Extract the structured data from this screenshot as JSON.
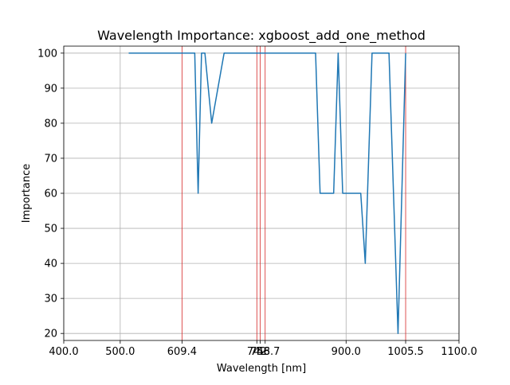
{
  "chart_data": {
    "type": "line",
    "title": "Wavelength Importance: xgboost_add_one_method",
    "xlabel": "Wavelength [nm]",
    "ylabel": "Importance",
    "xlim": [
      400,
      1100
    ],
    "ylim": [
      18,
      102
    ],
    "xticks": [
      {
        "value": 400,
        "label": "400.0"
      },
      {
        "value": 500,
        "label": "500.0"
      },
      {
        "value": 609.4,
        "label": "609.4"
      },
      {
        "value": 742,
        "label": "742"
      },
      {
        "value": 748,
        "label": "748"
      },
      {
        "value": 756.7,
        "label": "756.7"
      },
      {
        "value": 900,
        "label": "900.0"
      },
      {
        "value": 1005.5,
        "label": "1005.5"
      },
      {
        "value": 1100,
        "label": "1100.0"
      }
    ],
    "yticks": [
      20,
      30,
      40,
      50,
      60,
      70,
      80,
      90,
      100
    ],
    "grid": true,
    "vertical_lines": [
      609.4,
      742,
      748,
      756.7,
      1005.5
    ],
    "series": [
      {
        "color": "#1f77b4",
        "x": [
          515,
          632,
          638,
          644,
          650,
          662,
          684,
          846,
          854,
          878,
          886,
          894,
          926,
          934,
          946,
          976,
          992,
          1005.5
        ],
        "y": [
          100,
          100,
          60,
          100,
          100,
          80,
          100,
          100,
          60,
          60,
          100,
          60,
          60,
          40,
          100,
          100,
          20,
          100
        ]
      }
    ],
    "vline_color": "#d62728"
  }
}
